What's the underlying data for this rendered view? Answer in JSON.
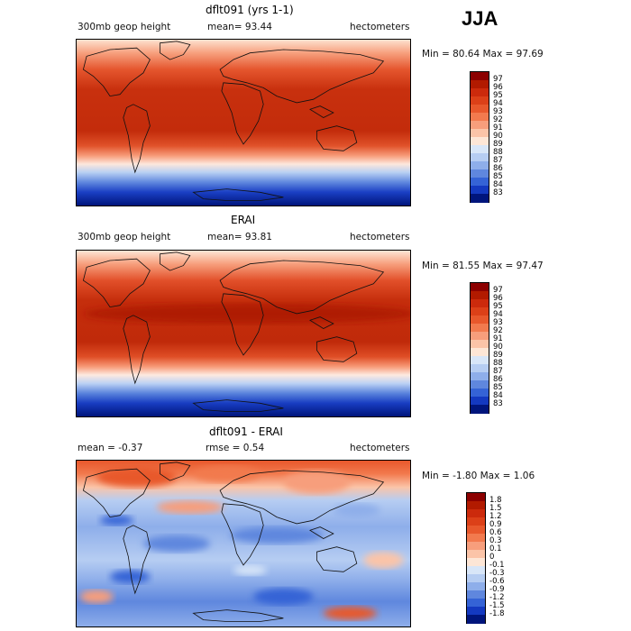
{
  "season": "JJA",
  "panels": [
    {
      "title": "dflt091 (yrs 1-1)",
      "left_label": "300mb geop height",
      "mid_label": "mean=  93.44",
      "right_label": "hectometers",
      "minmax": "Min =  80.64 Max =  97.69",
      "colorbar_labels": [
        "97",
        "96",
        "95",
        "94",
        "93",
        "92",
        "91",
        "90",
        "89",
        "88",
        "87",
        "86",
        "85",
        "84",
        "83"
      ],
      "colorbar_colors": [
        "#8c0000",
        "#b21a00",
        "#cc2a0c",
        "#dc4018",
        "#e8582c",
        "#f27a4e",
        "#f79e7c",
        "#fbc4a8",
        "#fde6d6",
        "#d8e6f8",
        "#b6cdf2",
        "#8eaeea",
        "#5f87de",
        "#3563d6",
        "#1439c0",
        "#00157c"
      ],
      "field_stops": [
        {
          "y": "0",
          "c": "#fde2d0"
        },
        {
          "y": "0.08",
          "c": "#f7a07e"
        },
        {
          "y": "0.18",
          "c": "#e5562e"
        },
        {
          "y": "0.3",
          "c": "#c8300e"
        },
        {
          "y": "0.55",
          "c": "#c32c0b"
        },
        {
          "y": "0.64",
          "c": "#e0522a"
        },
        {
          "y": "0.7",
          "c": "#f79c7a"
        },
        {
          "y": "0.75",
          "c": "#fde7dc"
        },
        {
          "y": "0.8",
          "c": "#b9d0f3"
        },
        {
          "y": "0.86",
          "c": "#5f87de"
        },
        {
          "y": "0.92",
          "c": "#1a3fc4"
        },
        {
          "y": "1",
          "c": "#00157c"
        }
      ]
    },
    {
      "title": "ERAI",
      "left_label": "300mb geop height",
      "mid_label": "mean=  93.81",
      "right_label": "hectometers",
      "minmax": "Min =  81.55 Max =  97.47",
      "colorbar_labels": [
        "97",
        "96",
        "95",
        "94",
        "93",
        "92",
        "91",
        "90",
        "89",
        "88",
        "87",
        "86",
        "85",
        "84",
        "83"
      ],
      "colorbar_colors": [
        "#8c0000",
        "#b21a00",
        "#cc2a0c",
        "#dc4018",
        "#e8582c",
        "#f27a4e",
        "#f79e7c",
        "#fbc4a8",
        "#fde6d6",
        "#d8e6f8",
        "#b6cdf2",
        "#8eaeea",
        "#5f87de",
        "#3563d6",
        "#1439c0",
        "#00157c"
      ],
      "field_stops": [
        {
          "y": "0",
          "c": "#fde6d6"
        },
        {
          "y": "0.08",
          "c": "#f7a07e"
        },
        {
          "y": "0.18",
          "c": "#e2502a"
        },
        {
          "y": "0.3",
          "c": "#c52e0c"
        },
        {
          "y": "0.55",
          "c": "#c02a0a"
        },
        {
          "y": "0.64",
          "c": "#df4e26"
        },
        {
          "y": "0.7",
          "c": "#f79a78"
        },
        {
          "y": "0.75",
          "c": "#fde9e0"
        },
        {
          "y": "0.8",
          "c": "#bdd2f4"
        },
        {
          "y": "0.86",
          "c": "#5a83dc"
        },
        {
          "y": "0.92",
          "c": "#183dc2"
        },
        {
          "y": "1",
          "c": "#00157c"
        }
      ]
    },
    {
      "title": "dflt091 - ERAI",
      "left_label": "mean =   -0.37",
      "mid_label": "rmse =    0.54",
      "right_label": "hectometers",
      "minmax": "Min =  -1.80 Max =   1.06",
      "colorbar_labels": [
        "1.8",
        "1.5",
        "1.2",
        "0.9",
        "0.6",
        "0.3",
        "0.1",
        "0",
        "-0.1",
        "-0.3",
        "-0.6",
        "-0.9",
        "-1.2",
        "-1.5",
        "-1.8"
      ],
      "colorbar_colors": [
        "#8c0000",
        "#b21a00",
        "#cc2a0c",
        "#dc4018",
        "#e8582c",
        "#f27a4e",
        "#f79e7c",
        "#fbc4a8",
        "#fde6d6",
        "#d8e6f8",
        "#b6cdf2",
        "#8eaeea",
        "#5f87de",
        "#3563d6",
        "#1439c0",
        "#00157c"
      ],
      "field_stops": [
        {
          "y": "0",
          "c": "#e8582c"
        },
        {
          "y": "0.08",
          "c": "#f27a4e"
        },
        {
          "y": "0.16",
          "c": "#fbc4a8"
        },
        {
          "y": "0.24",
          "c": "#b6cdf2"
        },
        {
          "y": "0.4",
          "c": "#8eaeea"
        },
        {
          "y": "0.6",
          "c": "#b6cdf2"
        },
        {
          "y": "0.72",
          "c": "#8eaeea"
        },
        {
          "y": "0.85",
          "c": "#5f87de"
        },
        {
          "y": "1",
          "c": "#8eaeea"
        }
      ]
    }
  ]
}
